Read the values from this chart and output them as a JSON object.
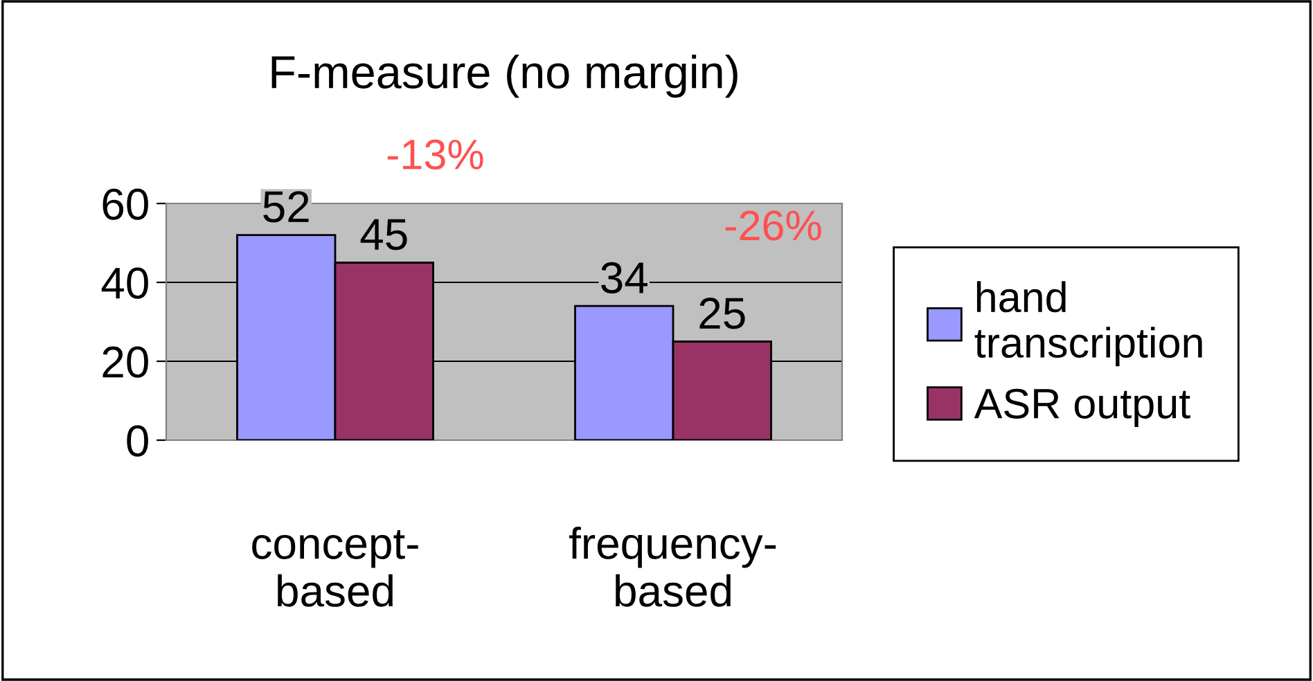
{
  "chart_data": {
    "type": "bar",
    "title": "F-measure (no margin)",
    "categories": [
      "concept-\nbased",
      "frequency-\nbased"
    ],
    "series": [
      {
        "name": "hand\ntranscription",
        "color": "#9999ff",
        "values": [
          52,
          34
        ]
      },
      {
        "name": "ASR output",
        "color": "#993366",
        "values": [
          45,
          25
        ]
      }
    ],
    "ylim": [
      0,
      60
    ],
    "yticks": [
      0,
      20,
      40,
      60
    ],
    "grid": "y",
    "data_labels": true,
    "legend": "right",
    "annotations": [
      "-13%",
      "-26%"
    ]
  }
}
